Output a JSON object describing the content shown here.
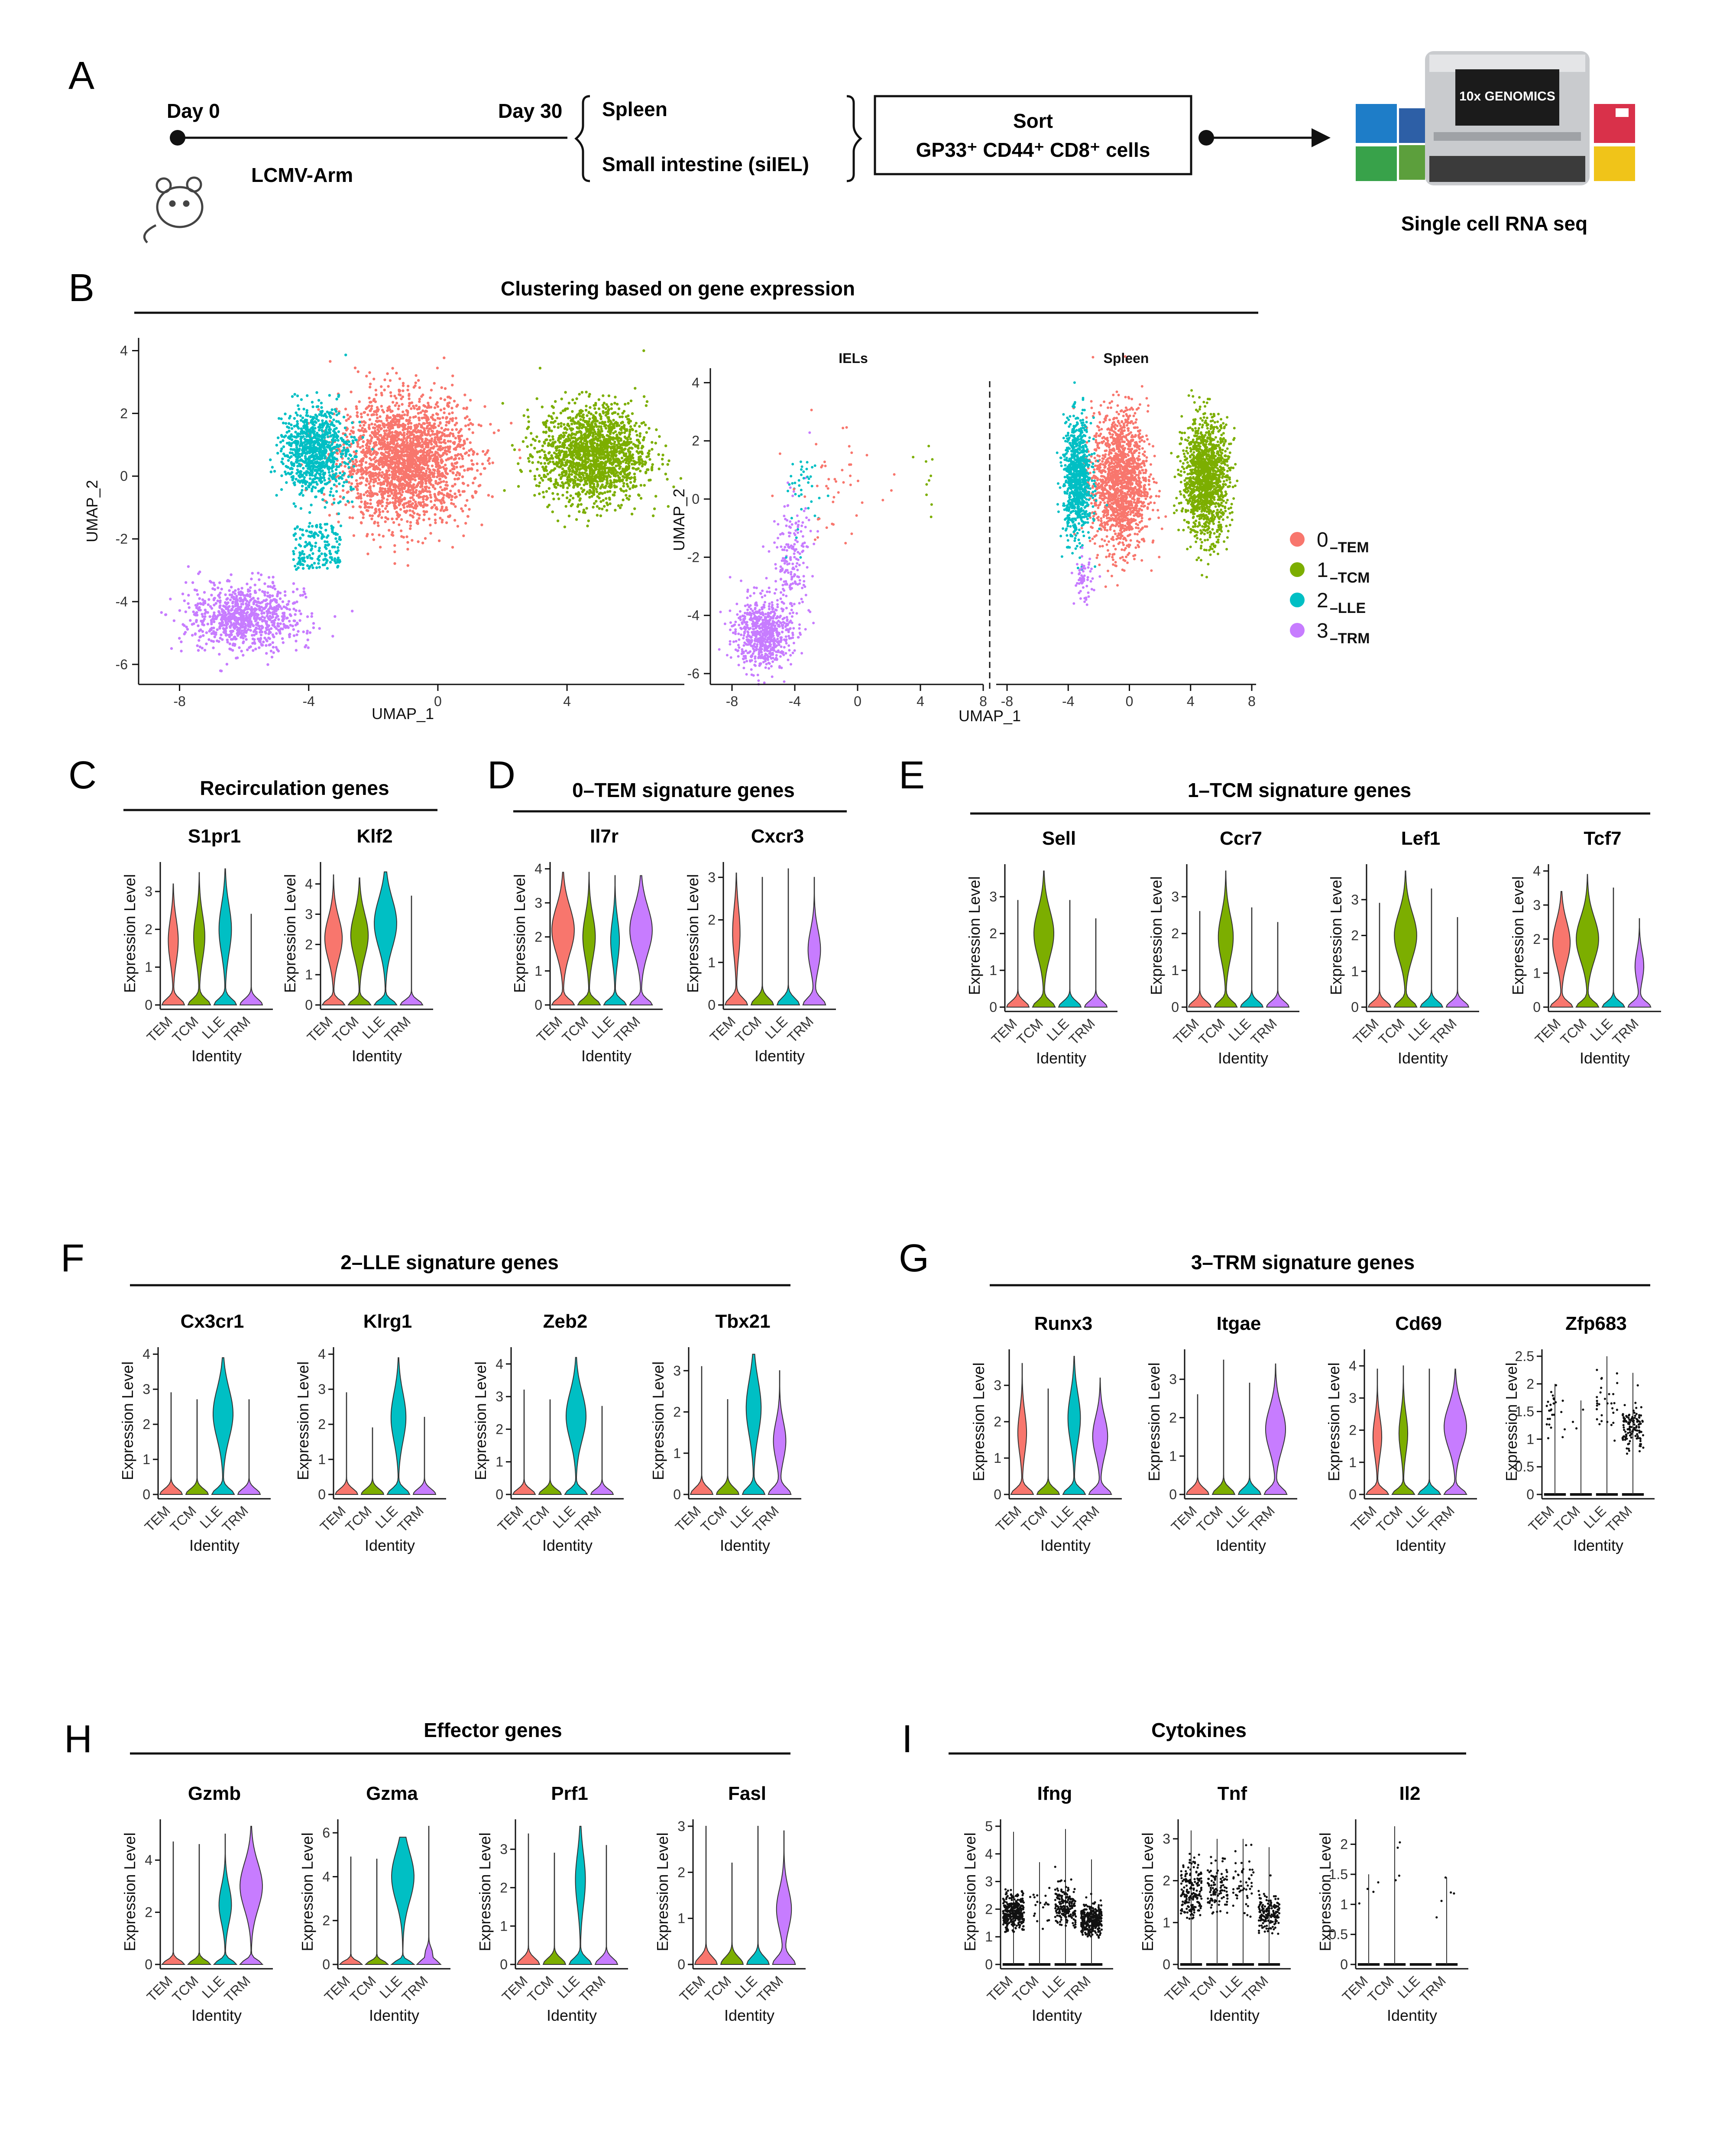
{
  "panels": {
    "A": {
      "letter": "A",
      "day0": "Day 0",
      "day30": "Day 30",
      "infection": "LCMV-Arm",
      "tissue1": "Spleen",
      "tissue2": "Small intestine (siIEL)",
      "sort_title": "Sort",
      "sort_text": "GP33⁺ CD44⁺ CD8⁺ cells",
      "instrument_logo": "10x GENOMICS",
      "output": "Single cell RNA seq"
    },
    "B": {
      "letter": "B",
      "title": "Clustering based on gene expression",
      "xlabel": "UMAP_1",
      "ylabel": "UMAP_2",
      "facet_left": "IELs",
      "facet_right": "Spleen",
      "legend": [
        {
          "num": "0",
          "sub": "–TEM",
          "color": "#F8766D"
        },
        {
          "num": "1",
          "sub": "–TCM",
          "color": "#7CAE00"
        },
        {
          "num": "2",
          "sub": "–LLE",
          "color": "#00BFC4"
        },
        {
          "num": "3",
          "sub": "–TRM",
          "color": "#C77CFF"
        }
      ]
    },
    "C": {
      "letter": "C",
      "title": "Recirculation genes"
    },
    "D": {
      "letter": "D",
      "title": "0–TEM signature genes"
    },
    "E": {
      "letter": "E",
      "title": "1–TCM signature genes"
    },
    "F": {
      "letter": "F",
      "title": "2–LLE signature genes"
    },
    "G": {
      "letter": "G",
      "title": "3–TRM signature genes"
    },
    "H": {
      "letter": "H",
      "title": "Effector genes"
    },
    "I": {
      "letter": "I",
      "title": "Cytokines"
    }
  },
  "violin_common": {
    "ylabel": "Expression Level",
    "xlabel": "Identity",
    "identities": [
      "TEM",
      "TCM",
      "LLE",
      "TRM"
    ],
    "colors": {
      "TEM": "#F8766D",
      "TCM": "#7CAE00",
      "LLE": "#00BFC4",
      "TRM": "#C77CFF"
    }
  },
  "chart_data": [
    {
      "type": "scatter",
      "title": "Clustering based on gene expression",
      "xlabel": "UMAP_1",
      "ylabel": "UMAP_2",
      "xlim": [
        -9,
        7.5
      ],
      "ylim": [
        -6.5,
        4.2
      ],
      "xticks": [
        -8,
        -4,
        0,
        4
      ],
      "yticks": [
        -6,
        -4,
        -2,
        0,
        2,
        4
      ],
      "clusters": [
        {
          "cluster": "0–TEM",
          "center": [
            -1.0,
            0.5
          ],
          "spread": [
            1.8,
            1.8
          ]
        },
        {
          "cluster": "1–TCM",
          "center": [
            4.8,
            0.7
          ],
          "spread": [
            1.5,
            1.4
          ]
        },
        {
          "cluster": "2–LLE",
          "center": [
            -3.8,
            0.8
          ],
          "spread": [
            0.9,
            1.3
          ]
        },
        {
          "cluster": "3–TRM",
          "center": [
            -6.0,
            -4.5
          ],
          "spread": [
            1.5,
            0.9
          ]
        }
      ]
    },
    {
      "type": "scatter",
      "facets": [
        "IELs",
        "Spleen"
      ],
      "xlabel": "UMAP_1",
      "ylabel": "UMAP_2",
      "facet_xticks": [
        [
          -8,
          -4,
          0,
          4,
          8
        ],
        [
          -8,
          -4,
          0,
          4,
          8
        ]
      ],
      "yticks": [
        -6,
        -4,
        -2,
        0,
        2,
        4
      ]
    },
    {
      "type": "violin",
      "genes": [
        {
          "panel": "C",
          "gene": "S1pr1",
          "ymax": 3.6,
          "yticks": [
            0,
            1,
            2,
            3
          ],
          "profiles": [
            {
              "mode": 1.7,
              "width": 0.4,
              "top": 3.2
            },
            {
              "mode": 1.8,
              "width": 0.45,
              "top": 3.5
            },
            {
              "mode": 2.0,
              "width": 0.5,
              "top": 3.6
            },
            {
              "mode": 0,
              "width": 0.02,
              "top": 2.4
            }
          ]
        },
        {
          "panel": "C",
          "gene": "Klf2",
          "ymax": 4.5,
          "yticks": [
            0,
            1,
            2,
            3,
            4
          ],
          "profiles": [
            {
              "mode": 2.2,
              "width": 0.7,
              "top": 4.3
            },
            {
              "mode": 2.3,
              "width": 0.7,
              "top": 4.2
            },
            {
              "mode": 2.7,
              "width": 0.9,
              "top": 4.4
            },
            {
              "mode": 0,
              "width": 0.02,
              "top": 3.6
            }
          ]
        },
        {
          "panel": "D",
          "gene": "Il7r",
          "ymax": 4.0,
          "yticks": [
            0,
            1,
            2,
            3,
            4
          ],
          "profiles": [
            {
              "mode": 2.2,
              "width": 0.9,
              "top": 3.9
            },
            {
              "mode": 2.0,
              "width": 0.5,
              "top": 3.9
            },
            {
              "mode": 1.9,
              "width": 0.35,
              "top": 3.8
            },
            {
              "mode": 2.2,
              "width": 0.9,
              "top": 3.8
            }
          ]
        },
        {
          "panel": "D",
          "gene": "Cxcr3",
          "ymax": 3.2,
          "yticks": [
            0,
            1,
            2,
            3
          ],
          "profiles": [
            {
              "mode": 1.7,
              "width": 0.3,
              "top": 3.1
            },
            {
              "mode": 0,
              "width": 0.02,
              "top": 3.0
            },
            {
              "mode": 0,
              "width": 0.02,
              "top": 3.2
            },
            {
              "mode": 1.3,
              "width": 0.5,
              "top": 3.0
            }
          ]
        },
        {
          "panel": "E",
          "gene": "Sell",
          "ymax": 3.7,
          "yticks": [
            0,
            1,
            2,
            3
          ],
          "profiles": [
            {
              "mode": 0,
              "width": 0.02,
              "top": 2.9
            },
            {
              "mode": 2.0,
              "width": 0.8,
              "top": 3.7
            },
            {
              "mode": 0,
              "width": 0.02,
              "top": 2.9
            },
            {
              "mode": 0,
              "width": 0.02,
              "top": 2.4
            }
          ]
        },
        {
          "panel": "E",
          "gene": "Ccr7",
          "ymax": 3.7,
          "yticks": [
            0,
            1,
            2,
            3
          ],
          "profiles": [
            {
              "mode": 0,
              "width": 0.02,
              "top": 2.6
            },
            {
              "mode": 1.9,
              "width": 0.6,
              "top": 3.7
            },
            {
              "mode": 0,
              "width": 0.02,
              "top": 2.7
            },
            {
              "mode": 0,
              "width": 0.02,
              "top": 2.3
            }
          ]
        },
        {
          "panel": "E",
          "gene": "Lef1",
          "ymax": 3.8,
          "yticks": [
            0,
            1,
            2,
            3
          ],
          "profiles": [
            {
              "mode": 0,
              "width": 0.02,
              "top": 2.9
            },
            {
              "mode": 2.0,
              "width": 0.9,
              "top": 3.8
            },
            {
              "mode": 0,
              "width": 0.02,
              "top": 3.3
            },
            {
              "mode": 0,
              "width": 0.02,
              "top": 2.5
            }
          ]
        },
        {
          "panel": "E",
          "gene": "Tcf7",
          "ymax": 4.0,
          "yticks": [
            0,
            1,
            2,
            3,
            4
          ],
          "profiles": [
            {
              "mode": 1.9,
              "width": 0.7,
              "top": 3.4
            },
            {
              "mode": 2.0,
              "width": 0.9,
              "top": 3.9
            },
            {
              "mode": 0,
              "width": 0.02,
              "top": 3.5
            },
            {
              "mode": 1.2,
              "width": 0.35,
              "top": 2.6
            }
          ]
        },
        {
          "panel": "F",
          "gene": "Cx3cr1",
          "ymax": 4.0,
          "yticks": [
            0,
            1,
            2,
            3,
            4
          ],
          "profiles": [
            {
              "mode": 0,
              "width": 0.02,
              "top": 2.9
            },
            {
              "mode": 0,
              "width": 0.02,
              "top": 2.7
            },
            {
              "mode": 2.3,
              "width": 0.8,
              "top": 3.9
            },
            {
              "mode": 0,
              "width": 0.02,
              "top": 2.7
            }
          ]
        },
        {
          "panel": "F",
          "gene": "Klrg1",
          "ymax": 4.0,
          "yticks": [
            0,
            1,
            2,
            3,
            4
          ],
          "profiles": [
            {
              "mode": 0,
              "width": 0.02,
              "top": 2.9
            },
            {
              "mode": 0,
              "width": 0.02,
              "top": 1.9
            },
            {
              "mode": 2.2,
              "width": 0.6,
              "top": 3.9
            },
            {
              "mode": 0,
              "width": 0.02,
              "top": 2.2
            }
          ]
        },
        {
          "panel": "F",
          "gene": "Zeb2",
          "ymax": 4.3,
          "yticks": [
            0,
            1,
            2,
            3,
            4
          ],
          "profiles": [
            {
              "mode": 0,
              "width": 0.02,
              "top": 3.2
            },
            {
              "mode": 0,
              "width": 0.02,
              "top": 2.9
            },
            {
              "mode": 2.4,
              "width": 0.8,
              "top": 4.2
            },
            {
              "mode": 0,
              "width": 0.02,
              "top": 2.7
            }
          ]
        },
        {
          "panel": "F",
          "gene": "Tbx21",
          "ymax": 3.4,
          "yticks": [
            0,
            1,
            2,
            3
          ],
          "profiles": [
            {
              "mode": 0,
              "width": 0.02,
              "top": 3.1
            },
            {
              "mode": 0,
              "width": 0.02,
              "top": 2.3
            },
            {
              "mode": 2.1,
              "width": 0.6,
              "top": 3.4
            },
            {
              "mode": 1.3,
              "width": 0.5,
              "top": 3.0
            }
          ]
        },
        {
          "panel": "G",
          "gene": "Runx3",
          "ymax": 3.8,
          "yticks": [
            0,
            1,
            2,
            3
          ],
          "profiles": [
            {
              "mode": 1.7,
              "width": 0.35,
              "top": 3.6
            },
            {
              "mode": 0,
              "width": 0.02,
              "top": 2.9
            },
            {
              "mode": 2.1,
              "width": 0.5,
              "top": 3.8
            },
            {
              "mode": 1.6,
              "width": 0.6,
              "top": 3.2
            }
          ]
        },
        {
          "panel": "G",
          "gene": "Itgae",
          "ymax": 3.6,
          "yticks": [
            0,
            1,
            2,
            3
          ],
          "profiles": [
            {
              "mode": 0,
              "width": 0.02,
              "top": 2.6
            },
            {
              "mode": 0,
              "width": 0.02,
              "top": 3.5
            },
            {
              "mode": 0,
              "width": 0.02,
              "top": 2.9
            },
            {
              "mode": 1.7,
              "width": 0.8,
              "top": 3.4
            }
          ]
        },
        {
          "panel": "G",
          "gene": "Cd69",
          "ymax": 4.3,
          "yticks": [
            0,
            1,
            2,
            3,
            4
          ],
          "profiles": [
            {
              "mode": 1.8,
              "width": 0.35,
              "top": 3.9
            },
            {
              "mode": 1.9,
              "width": 0.35,
              "top": 4.0
            },
            {
              "mode": 0,
              "width": 0.02,
              "top": 3.9
            },
            {
              "mode": 2.1,
              "width": 0.9,
              "top": 3.9
            }
          ]
        },
        {
          "panel": "G",
          "gene": "Zfp683",
          "ymax": 2.5,
          "yticks": [
            0.0,
            0.5,
            1.0,
            1.5,
            2.0,
            2.5
          ],
          "style": "jitter",
          "profiles": [
            {
              "mode": 1.5,
              "top": 2.0,
              "n": 25
            },
            {
              "mode": 1.5,
              "top": 1.7,
              "n": 3
            },
            {
              "mode": 1.6,
              "top": 2.5,
              "n": 30
            },
            {
              "mode": 1.2,
              "top": 2.2,
              "n": 120
            }
          ]
        },
        {
          "panel": "H",
          "gene": "Gzmb",
          "ymax": 5.3,
          "yticks": [
            0,
            2,
            4
          ],
          "profiles": [
            {
              "mode": 0,
              "width": 0.02,
              "top": 4.7
            },
            {
              "mode": 0,
              "width": 0.02,
              "top": 4.6
            },
            {
              "mode": 2.3,
              "width": 0.5,
              "top": 5.0
            },
            {
              "mode": 3.0,
              "width": 0.9,
              "top": 5.3
            }
          ]
        },
        {
          "panel": "H",
          "gene": "Gzma",
          "ymax": 6.3,
          "yticks": [
            0,
            2,
            4,
            6
          ],
          "profiles": [
            {
              "mode": 0,
              "width": 0.02,
              "top": 4.9
            },
            {
              "mode": 0,
              "width": 0.02,
              "top": 4.8
            },
            {
              "mode": 4.0,
              "width": 0.9,
              "top": 5.8
            },
            {
              "mode": 0.5,
              "width": 0.3,
              "top": 6.3
            }
          ]
        },
        {
          "panel": "H",
          "gene": "Prf1",
          "ymax": 3.6,
          "yticks": [
            0,
            1,
            2,
            3
          ],
          "profiles": [
            {
              "mode": 0,
              "width": 0.02,
              "top": 3.4
            },
            {
              "mode": 0,
              "width": 0.02,
              "top": 2.9
            },
            {
              "mode": 2.2,
              "width": 0.4,
              "top": 3.6
            },
            {
              "mode": 0,
              "width": 0.02,
              "top": 3.1
            }
          ]
        },
        {
          "panel": "H",
          "gene": "Fasl",
          "ymax": 3.0,
          "yticks": [
            0,
            1,
            2,
            3
          ],
          "profiles": [
            {
              "mode": 0,
              "width": 0.02,
              "top": 3.0
            },
            {
              "mode": 0,
              "width": 0.02,
              "top": 2.2
            },
            {
              "mode": 0,
              "width": 0.02,
              "top": 3.0
            },
            {
              "mode": 1.2,
              "width": 0.6,
              "top": 2.9
            }
          ]
        },
        {
          "panel": "I",
          "gene": "Ifng",
          "ymax": 5.0,
          "yticks": [
            0,
            1,
            2,
            3,
            4,
            5
          ],
          "style": "jitter",
          "profiles": [
            {
              "mode": 1.9,
              "top": 4.8,
              "n": 320
            },
            {
              "mode": 2.0,
              "top": 3.7,
              "n": 20
            },
            {
              "mode": 2.1,
              "top": 4.9,
              "n": 180
            },
            {
              "mode": 1.6,
              "top": 3.8,
              "n": 320
            }
          ]
        },
        {
          "panel": "I",
          "gene": "Tnf",
          "ymax": 3.3,
          "yticks": [
            0,
            1,
            2,
            3
          ],
          "style": "jitter",
          "profiles": [
            {
              "mode": 1.8,
              "top": 3.2,
              "n": 180
            },
            {
              "mode": 1.8,
              "top": 3.0,
              "n": 100
            },
            {
              "mode": 1.9,
              "top": 3.0,
              "n": 50
            },
            {
              "mode": 1.2,
              "top": 2.8,
              "n": 160
            }
          ]
        },
        {
          "panel": "I",
          "gene": "Il2",
          "ymax": 2.3,
          "yticks": [
            0.0,
            0.5,
            1.0,
            1.5,
            2.0
          ],
          "style": "jitter",
          "profiles": [
            {
              "mode": 1.4,
              "top": 1.5,
              "n": 4
            },
            {
              "mode": 1.8,
              "top": 2.3,
              "n": 4
            },
            {
              "mode": 0,
              "top": 0.0,
              "n": 0
            },
            {
              "mode": 1.3,
              "top": 1.45,
              "n": 5
            }
          ]
        }
      ]
    }
  ]
}
